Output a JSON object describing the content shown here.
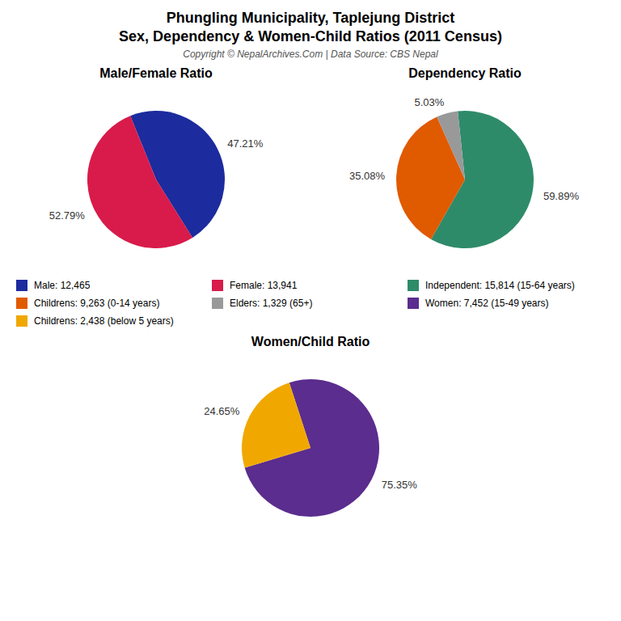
{
  "title": "Phungling Municipality, Taplejung District",
  "subtitle": "Sex, Dependency & Women-Child Ratios (2011 Census)",
  "annotations": [
    "Copyright © NepalArchives.Com | Data Source: CBS Nepal"
  ],
  "chart_data": [
    {
      "type": "pie",
      "title": "Male/Female Ratio",
      "categories": [
        "Male: 12,465",
        "Female: 13,941"
      ],
      "values": [
        47.21,
        52.79
      ],
      "value_labels": [
        "47.21%",
        "52.79%"
      ],
      "colors": [
        "#1c2b9e",
        "#d81b4a"
      ],
      "data_labels": true,
      "legend": true
    },
    {
      "type": "pie",
      "title": "Dependency Ratio",
      "categories": [
        "Independent: 15,814 (15-64 years)",
        "Childrens: 9,263 (0-14 years)",
        "Elders: 1,329 (65+)"
      ],
      "values": [
        59.89,
        35.08,
        5.03
      ],
      "value_labels": [
        "59.89%",
        "35.08%",
        "5.03%"
      ],
      "colors": [
        "#2e8b6a",
        "#e05a00",
        "#999999"
      ],
      "data_labels": true,
      "legend": true
    },
    {
      "type": "pie",
      "title": "Women/Child Ratio",
      "categories": [
        "Women: 7,452 (15-49 years)",
        "Childrens: 2,438 (below 5 years)"
      ],
      "values": [
        75.35,
        24.65
      ],
      "value_labels": [
        "75.35%",
        "24.65%"
      ],
      "colors": [
        "#5b2d8e",
        "#f0a800"
      ],
      "data_labels": true,
      "legend": true
    }
  ]
}
